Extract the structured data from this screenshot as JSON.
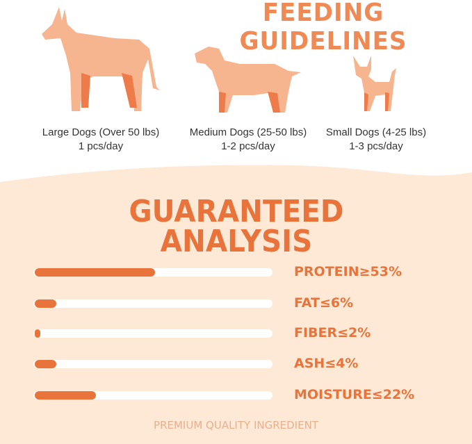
{
  "feeding": {
    "title": "FEEDING GUIDELINES",
    "dogs": [
      {
        "size": "Large Dogs (Over 50 lbs)",
        "amount": "1 pcs/day"
      },
      {
        "size": "Medium Dogs (25-50 lbs)",
        "amount": "1-2 pcs/day"
      },
      {
        "size": "Small Dogs (4-25 lbs)",
        "amount": "1-3 pcs/day"
      }
    ]
  },
  "analysis": {
    "title_line1": "GUARANTEED",
    "title_line2": "ANALYSIS",
    "items": [
      {
        "label": "PROTEIN≥53%",
        "bar_percent": 51
      },
      {
        "label": "FAT≤6%",
        "bar_percent": 9
      },
      {
        "label": "FIBER≤2%",
        "bar_percent": 2
      },
      {
        "label": "ASH≤4%",
        "bar_percent": 9
      },
      {
        "label": "MOISTURE≤22%",
        "bar_percent": 26
      }
    ]
  },
  "footer": "PREMIUM QUALITY INGREDIENT",
  "colors": {
    "accent": "#e8743b",
    "dog_light": "#f6b48f",
    "dog_dark": "#ee7b4a",
    "cream": "#fde9d6"
  }
}
